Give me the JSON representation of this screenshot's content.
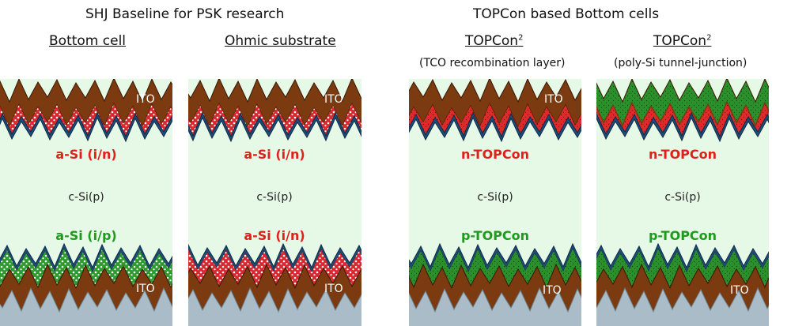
{
  "groups": [
    {
      "title": "SHJ Baseline for PSK research"
    },
    {
      "title": "TOPCon based Bottom cells"
    }
  ],
  "columns": [
    {
      "title": "Bottom cell",
      "sup": "",
      "subtitle": "",
      "top_contact": "ITO",
      "top_layer": "a-Si (i/n)",
      "bulk": "c-Si(p)",
      "bottom_layer": "a-Si (i/p)",
      "bottom_contact": "ITO"
    },
    {
      "title": "Ohmic substrate",
      "sup": "",
      "subtitle": "",
      "top_contact": "ITO",
      "top_layer": "a-Si (i/n)",
      "bulk": "c-Si(p)",
      "bottom_layer": "a-Si (i/n)",
      "bottom_contact": "ITO"
    },
    {
      "title": "TOPCon",
      "sup": "2",
      "subtitle": "(TCO recombination layer)",
      "top_contact": "ITO",
      "top_layer": "n-TOPCon",
      "bulk": "c-Si(p)",
      "bottom_layer": "p-TOPCon",
      "bottom_contact": "ITO"
    },
    {
      "title": "TOPCon",
      "sup": "2",
      "subtitle": "(poly-Si tunnel-junction)",
      "top_contact": "",
      "top_layer": "n-TOPCon",
      "bulk": "c-Si(p)",
      "bottom_layer": "p-TOPCon",
      "bottom_contact": "ITO"
    }
  ],
  "colors": {
    "ito": "#7b3a10",
    "red_layer": "#d8282f",
    "green_layer": "#2e9a2e",
    "passivation": "#1f4e79",
    "bulk": "#e6f8e6",
    "substrate": "#a9bcc7",
    "label_red": "#e0201b",
    "label_green": "#1f9a1f",
    "label_dark": "#222222"
  }
}
